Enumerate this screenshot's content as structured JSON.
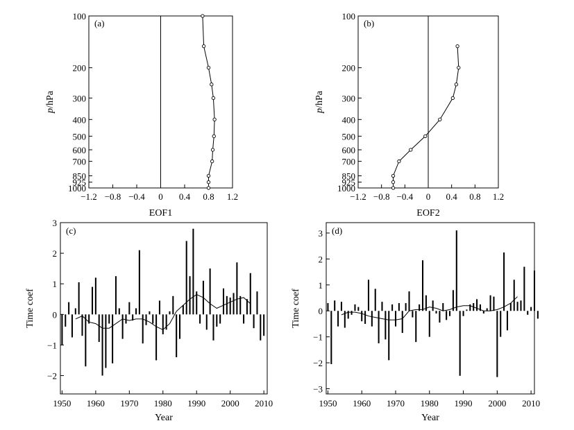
{
  "chart_data": [
    {
      "type": "line",
      "panel_label": "(a)",
      "xlabel": "EOF1",
      "ylabel_italic": "p",
      "ylabel_rest": "/hPa",
      "xlim": [
        -1.2,
        1.2
      ],
      "ylim": [
        1000,
        100
      ],
      "y_axis": "log-pressure (inverted)",
      "xticks": [
        "−1.2",
        "−0.8",
        "−0.4",
        "0",
        "0.4",
        "0.8",
        "1.2"
      ],
      "yticks": [
        "100",
        "200",
        "300",
        "400",
        "500",
        "600",
        "700",
        "850",
        "925",
        "1000"
      ],
      "points": [
        {
          "p": 100,
          "v": 0.7
        },
        {
          "p": 150,
          "v": 0.72
        },
        {
          "p": 200,
          "v": 0.8
        },
        {
          "p": 250,
          "v": 0.85
        },
        {
          "p": 300,
          "v": 0.88
        },
        {
          "p": 400,
          "v": 0.9
        },
        {
          "p": 500,
          "v": 0.89
        },
        {
          "p": 600,
          "v": 0.87
        },
        {
          "p": 700,
          "v": 0.86
        },
        {
          "p": 850,
          "v": 0.8
        },
        {
          "p": 925,
          "v": 0.8
        },
        {
          "p": 1000,
          "v": 0.8
        }
      ]
    },
    {
      "type": "line",
      "panel_label": "(b)",
      "xlabel": "EOF2",
      "ylabel_italic": "p",
      "ylabel_rest": "/hPa",
      "xlim": [
        -1.2,
        1.2
      ],
      "ylim": [
        1000,
        100
      ],
      "y_axis": "log-pressure (inverted)",
      "xticks": [
        "−1.2",
        "−0.8",
        "−0.4",
        "0",
        "0.4",
        "0.8",
        "1.2"
      ],
      "yticks": [
        "100",
        "200",
        "300",
        "400",
        "500",
        "600",
        "700",
        "850",
        "925",
        "1000"
      ],
      "points": [
        {
          "p": 150,
          "v": 0.5
        },
        {
          "p": 200,
          "v": 0.52
        },
        {
          "p": 250,
          "v": 0.48
        },
        {
          "p": 300,
          "v": 0.42
        },
        {
          "p": 400,
          "v": 0.2
        },
        {
          "p": 500,
          "v": -0.05
        },
        {
          "p": 600,
          "v": -0.3
        },
        {
          "p": 700,
          "v": -0.5
        },
        {
          "p": 850,
          "v": -0.6
        },
        {
          "p": 925,
          "v": -0.6
        },
        {
          "p": 1000,
          "v": -0.6
        }
      ]
    },
    {
      "type": "bar",
      "panel_label": "(c)",
      "xlabel": "Year",
      "ylabel": "Time coef",
      "xlim": [
        1949.5,
        2011
      ],
      "ylim": [
        -2.6,
        3
      ],
      "xticks": [
        "1950",
        "1960",
        "1970",
        "1980",
        "1990",
        "2000",
        "2010"
      ],
      "yticks": [
        "−2",
        "−1",
        "0",
        "1",
        "2",
        "3"
      ],
      "years_start": 1950,
      "values": [
        -1.0,
        -0.4,
        0.4,
        -0.75,
        0.2,
        1.05,
        -0.7,
        -1.7,
        -0.3,
        0.9,
        1.2,
        -0.9,
        -2.0,
        -1.75,
        -0.3,
        -1.6,
        1.25,
        0.2,
        -0.8,
        -0.3,
        0.4,
        -0.2,
        0.2,
        2.1,
        -0.95,
        -0.35,
        0.1,
        -0.3,
        -1.5,
        0.45,
        -0.65,
        -0.5,
        0.1,
        0.6,
        -1.4,
        -0.8,
        0.3,
        2.4,
        1.25,
        2.8,
        0.75,
        -0.3,
        1.1,
        -0.5,
        1.5,
        -0.85,
        -0.4,
        -0.3,
        0.85,
        0.6,
        0.55,
        0.7,
        1.7,
        0.6,
        -0.3,
        0.5,
        1.35,
        -0.45,
        0.75,
        -0.85,
        -0.7
      ],
      "smooth": [
        {
          "x": 1954,
          "y": -0.15
        },
        {
          "x": 1956,
          "y": -0.05
        },
        {
          "x": 1958,
          "y": -0.25
        },
        {
          "x": 1960,
          "y": -0.3
        },
        {
          "x": 1962,
          "y": -0.45
        },
        {
          "x": 1964,
          "y": -0.45
        },
        {
          "x": 1966,
          "y": -0.3
        },
        {
          "x": 1968,
          "y": -0.15
        },
        {
          "x": 1970,
          "y": -0.2
        },
        {
          "x": 1972,
          "y": -0.15
        },
        {
          "x": 1974,
          "y": -0.15
        },
        {
          "x": 1976,
          "y": -0.25
        },
        {
          "x": 1978,
          "y": -0.4
        },
        {
          "x": 1980,
          "y": -0.5
        },
        {
          "x": 1982,
          "y": -0.3
        },
        {
          "x": 1984,
          "y": 0.1
        },
        {
          "x": 1986,
          "y": 0.3
        },
        {
          "x": 1988,
          "y": 0.5
        },
        {
          "x": 1990,
          "y": 0.65
        },
        {
          "x": 1992,
          "y": 0.55
        },
        {
          "x": 1994,
          "y": 0.35
        },
        {
          "x": 1996,
          "y": 0.2
        },
        {
          "x": 1998,
          "y": 0.3
        },
        {
          "x": 2000,
          "y": 0.4
        },
        {
          "x": 2002,
          "y": 0.5
        },
        {
          "x": 2004,
          "y": 0.55
        },
        {
          "x": 2006,
          "y": 0.35
        }
      ]
    },
    {
      "type": "bar",
      "panel_label": "(d)",
      "xlabel": "Year",
      "ylabel": "Time coef",
      "xlim": [
        1949.5,
        2011
      ],
      "ylim": [
        -3.2,
        3.4
      ],
      "xticks": [
        "1950",
        "1960",
        "1970",
        "1980",
        "1990",
        "2000",
        "2010"
      ],
      "yticks": [
        "−3",
        "−2",
        "−1",
        "0",
        "1",
        "2",
        "3"
      ],
      "years_start": 1950,
      "values": [
        0.3,
        -2.05,
        0.4,
        -0.6,
        0.35,
        -0.65,
        -0.3,
        -0.15,
        0.25,
        0.15,
        -0.4,
        -0.5,
        1.2,
        -0.6,
        0.85,
        -1.25,
        0.35,
        -1.1,
        -1.9,
        0.25,
        -0.6,
        0.3,
        -0.85,
        0.3,
        0.75,
        -0.25,
        -1.2,
        0.25,
        1.95,
        0.6,
        -1.0,
        0.4,
        -0.1,
        -0.45,
        0.3,
        -0.35,
        -0.2,
        0.8,
        3.1,
        -2.5,
        -0.2,
        0.05,
        0.25,
        0.3,
        0.45,
        0.25,
        -0.1,
        0.1,
        0.6,
        0.55,
        -2.55,
        -1.0,
        2.25,
        -0.75,
        0.3,
        1.2,
        0.35,
        0.4,
        1.7,
        -0.15,
        0.15,
        1.55,
        -0.3
      ],
      "smooth": [
        {
          "x": 1954,
          "y": -0.15
        },
        {
          "x": 1956,
          "y": -0.05
        },
        {
          "x": 1958,
          "y": -0.05
        },
        {
          "x": 1960,
          "y": -0.1
        },
        {
          "x": 1962,
          "y": -0.2
        },
        {
          "x": 1964,
          "y": -0.25
        },
        {
          "x": 1966,
          "y": -0.3
        },
        {
          "x": 1968,
          "y": -0.35
        },
        {
          "x": 1970,
          "y": -0.35
        },
        {
          "x": 1972,
          "y": -0.3
        },
        {
          "x": 1974,
          "y": 0.0
        },
        {
          "x": 1976,
          "y": 0.05
        },
        {
          "x": 1978,
          "y": 0.05
        },
        {
          "x": 1980,
          "y": 0.15
        },
        {
          "x": 1982,
          "y": 0.1
        },
        {
          "x": 1984,
          "y": 0.0
        },
        {
          "x": 1986,
          "y": 0.05
        },
        {
          "x": 1988,
          "y": 0.15
        },
        {
          "x": 1990,
          "y": 0.2
        },
        {
          "x": 1992,
          "y": 0.2
        },
        {
          "x": 1994,
          "y": 0.1
        },
        {
          "x": 1996,
          "y": 0.0
        },
        {
          "x": 1998,
          "y": 0.0
        },
        {
          "x": 2000,
          "y": 0.05
        },
        {
          "x": 2002,
          "y": 0.15
        },
        {
          "x": 2004,
          "y": 0.3
        },
        {
          "x": 2006,
          "y": 0.55
        }
      ]
    }
  ]
}
